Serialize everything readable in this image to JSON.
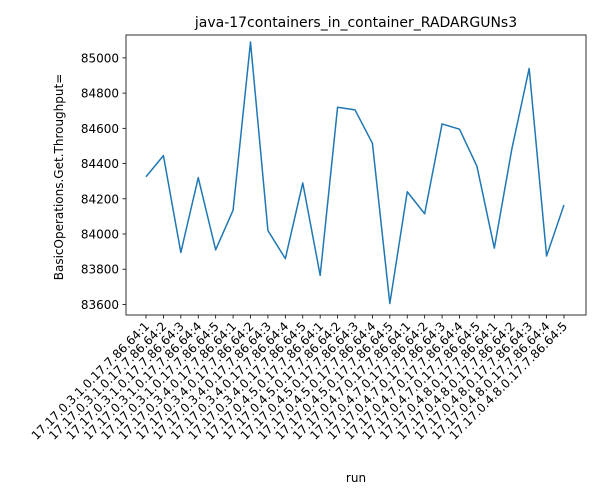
{
  "chart_data": {
    "type": "line",
    "title": "java-17containers_in_container_RADARGUNs3",
    "xlabel": "run",
    "ylabel": "BasicOperations.Get.Throughput=",
    "ylim": [
      83540,
      85130
    ],
    "yticks": [
      83600,
      83800,
      84000,
      84200,
      84400,
      84600,
      84800,
      85000
    ],
    "grid": false,
    "legend": "none",
    "categories": [
      "17.17.0.3.1.0.17.7.86.64:1",
      "17.17.0.3.1.0.17.7.86.64:2",
      "17.17.0.3.1.0.17.7.86.64:3",
      "17.17.0.3.1.0.17.7.86.64:4",
      "17.17.0.3.1.0.17.7.86.64:5",
      "17.17.0.3.4.0.17.7.86.64:1",
      "17.17.0.3.4.0.17.7.86.64:2",
      "17.17.0.3.4.0.17.7.86.64:3",
      "17.17.0.3.4.0.17.7.86.64:4",
      "17.17.0.3.4.0.17.7.86.64:5",
      "17.17.0.4.5.0.17.7.86.64:1",
      "17.17.0.4.5.0.17.7.86.64:2",
      "17.17.0.4.5.0.17.7.86.64:3",
      "17.17.0.4.5.0.17.7.86.64:4",
      "17.17.0.4.5.0.17.7.86.64:5",
      "17.17.0.4.7.0.17.7.86.64:1",
      "17.17.0.4.7.0.17.7.86.64:2",
      "17.17.0.4.7.0.17.7.86.64:3",
      "17.17.0.4.7.0.17.7.86.64:4",
      "17.17.0.4.7.0.17.7.86.64:5",
      "17.17.0.4.8.0.17.7.86.64:1",
      "17.17.0.4.8.0.17.7.86.64:2",
      "17.17.0.4.8.0.17.7.86.64:3",
      "17.17.0.4.8.0.17.7.86.64:4",
      "17.17.0.4.8.0.17.7.86.64:5"
    ],
    "series": [
      {
        "name": "",
        "color": "#1f77b4",
        "values": [
          84325,
          84445,
          83895,
          84320,
          83910,
          84135,
          85090,
          84020,
          83860,
          84290,
          83765,
          84720,
          84705,
          84515,
          83605,
          84240,
          84115,
          84625,
          84595,
          84385,
          83920,
          84480,
          84940,
          83875,
          84165
        ]
      }
    ]
  }
}
